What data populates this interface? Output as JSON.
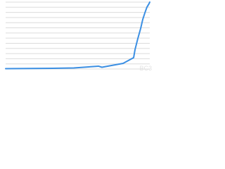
{
  "chart_data": {
    "type": "line",
    "watermark": "BC3",
    "x": [
      0,
      32.7,
      47.3,
      64.4,
      66.8,
      81.5,
      88.8,
      89.8,
      91.7,
      93.7,
      95.1,
      96.6,
      98.0,
      99.5,
      100
    ],
    "series": [
      {
        "color": "#3b8fe3",
        "values": [
          0.07,
          0.14,
          0.2,
          0.55,
          0.34,
          1.1,
          2.2,
          3.8,
          5.9,
          7.9,
          9.6,
          10.9,
          12.0,
          12.7,
          13
        ]
      }
    ],
    "xlim": [
      0,
      100
    ],
    "ylim": [
      0,
      13
    ],
    "yticks": [
      0,
      1,
      2,
      3,
      4,
      5,
      6,
      7,
      8,
      9,
      10,
      11,
      12,
      13
    ],
    "grid": true
  }
}
